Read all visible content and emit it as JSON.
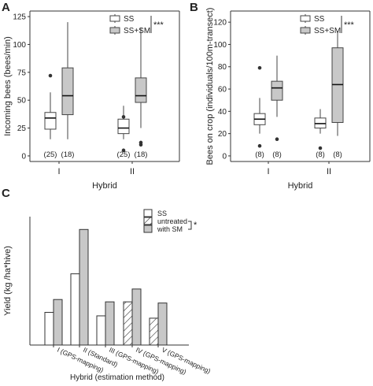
{
  "panels": {
    "A": {
      "letter": "A"
    },
    "B": {
      "letter": "B"
    },
    "C": {
      "letter": "C"
    }
  },
  "colors": {
    "white_box": "#ffffff",
    "gray_box": "#c8c8c8",
    "axis": "#333333"
  },
  "chart_data": [
    {
      "panel": "A",
      "type": "boxplot",
      "xlabel": "Hybrid",
      "ylabel": "Incoming bees (bees/min)",
      "categories": [
        "I",
        "II"
      ],
      "ylim": [
        -5,
        130
      ],
      "yticks": [
        0,
        25,
        50,
        75,
        100,
        125
      ],
      "legend": {
        "placement": "top-right",
        "entries": [
          "SS",
          "SS+SM"
        ]
      },
      "significance": "***",
      "sample_sizes": [
        "(25)",
        "(25)",
        "(18)",
        "(18)"
      ],
      "series": [
        {
          "name": "SS",
          "boxes": [
            {
              "min": 15,
              "q1": 24,
              "median": 34,
              "q3": 39,
              "max": 57,
              "outliers": [
                72
              ]
            },
            {
              "min": 15,
              "q1": 20,
              "median": 25,
              "q3": 33,
              "max": 45,
              "outliers": [
                5,
                35
              ]
            }
          ]
        },
        {
          "name": "SS+SM",
          "boxes": [
            {
              "min": 15,
              "q1": 37,
              "median": 54,
              "q3": 79,
              "max": 120,
              "outliers": []
            },
            {
              "min": 25,
              "q1": 48,
              "median": 54,
              "q3": 70,
              "max": 115,
              "outliers": [
                12,
                10
              ]
            }
          ]
        }
      ]
    },
    {
      "panel": "B",
      "type": "boxplot",
      "xlabel": "Hybrid",
      "ylabel": "Bees on crop (individuals/100m-transect)",
      "categories": [
        "I",
        "II"
      ],
      "ylim": [
        -5,
        130
      ],
      "yticks": [
        0,
        20,
        40,
        60,
        80,
        100,
        120
      ],
      "legend": {
        "placement": "top-right",
        "entries": [
          "SS",
          "SS+SM"
        ]
      },
      "significance": "***",
      "sample_sizes": [
        "(8)",
        "(8)",
        "(8)",
        "(8)"
      ],
      "series": [
        {
          "name": "SS",
          "boxes": [
            {
              "min": 20,
              "q1": 28,
              "median": 33,
              "q3": 38,
              "max": 52,
              "outliers": [
                79,
                9
              ]
            },
            {
              "min": 20,
              "q1": 25,
              "median": 29,
              "q3": 34,
              "max": 42,
              "outliers": [
                7
              ]
            }
          ]
        },
        {
          "name": "SS+SM",
          "boxes": [
            {
              "min": 35,
              "q1": 50,
              "median": 61,
              "q3": 67,
              "max": 90,
              "outliers": [
                15
              ]
            },
            {
              "min": 18,
              "q1": 30,
              "median": 64,
              "q3": 97,
              "max": 112,
              "outliers": []
            }
          ]
        }
      ]
    },
    {
      "panel": "C",
      "type": "bar",
      "xlabel": "Hybrid (estimation method)",
      "ylabel": "Yield (kg /ha*hive)",
      "categories": [
        "I (GPS-mapping)",
        "II (Standard)",
        "III (GPS-mapping)",
        "IV (GPS-mapping)",
        "V (GPS-mapping)"
      ],
      "ylim": [
        0,
        55
      ],
      "legend": {
        "placement": "top-right",
        "title": "SS",
        "entries": [
          "untreated",
          "with SM"
        ]
      },
      "significance": "*",
      "series": [
        {
          "name": "untreated",
          "values": [
            14,
            30.5,
            12.5,
            18.5,
            11.5
          ],
          "hatched": [
            false,
            false,
            false,
            true,
            true
          ]
        },
        {
          "name": "with SM",
          "values": [
            19.5,
            49.5,
            18.5,
            24,
            18
          ]
        }
      ]
    }
  ]
}
